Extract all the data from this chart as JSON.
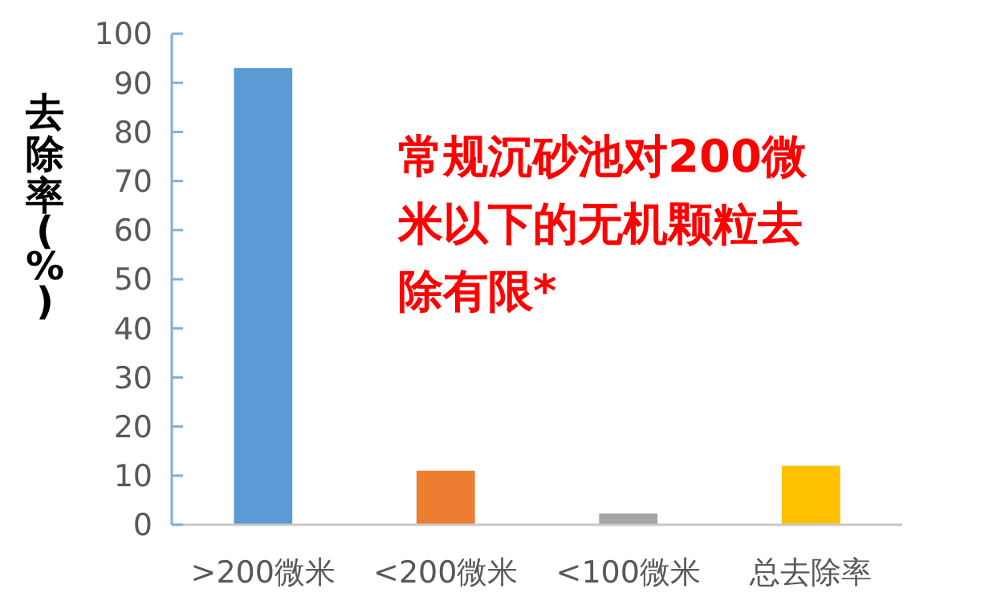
{
  "chart_data": {
    "type": "bar",
    "ylabel": "去除率(%)",
    "categories": [
      ">200微米",
      "<200微米",
      "<100微米",
      "总去除率"
    ],
    "values": [
      93,
      11,
      2.3,
      12
    ],
    "colors": [
      "#5b9bd5",
      "#ed7d31",
      "#a5a5a5",
      "#ffc000"
    ],
    "ylim": [
      0,
      100
    ],
    "yticks": [
      0,
      10,
      20,
      30,
      40,
      50,
      60,
      70,
      80,
      90,
      100
    ],
    "grid": false,
    "annotations": [
      "常规沉砂池对200微米以下的无机颗粒去除有限*"
    ]
  }
}
